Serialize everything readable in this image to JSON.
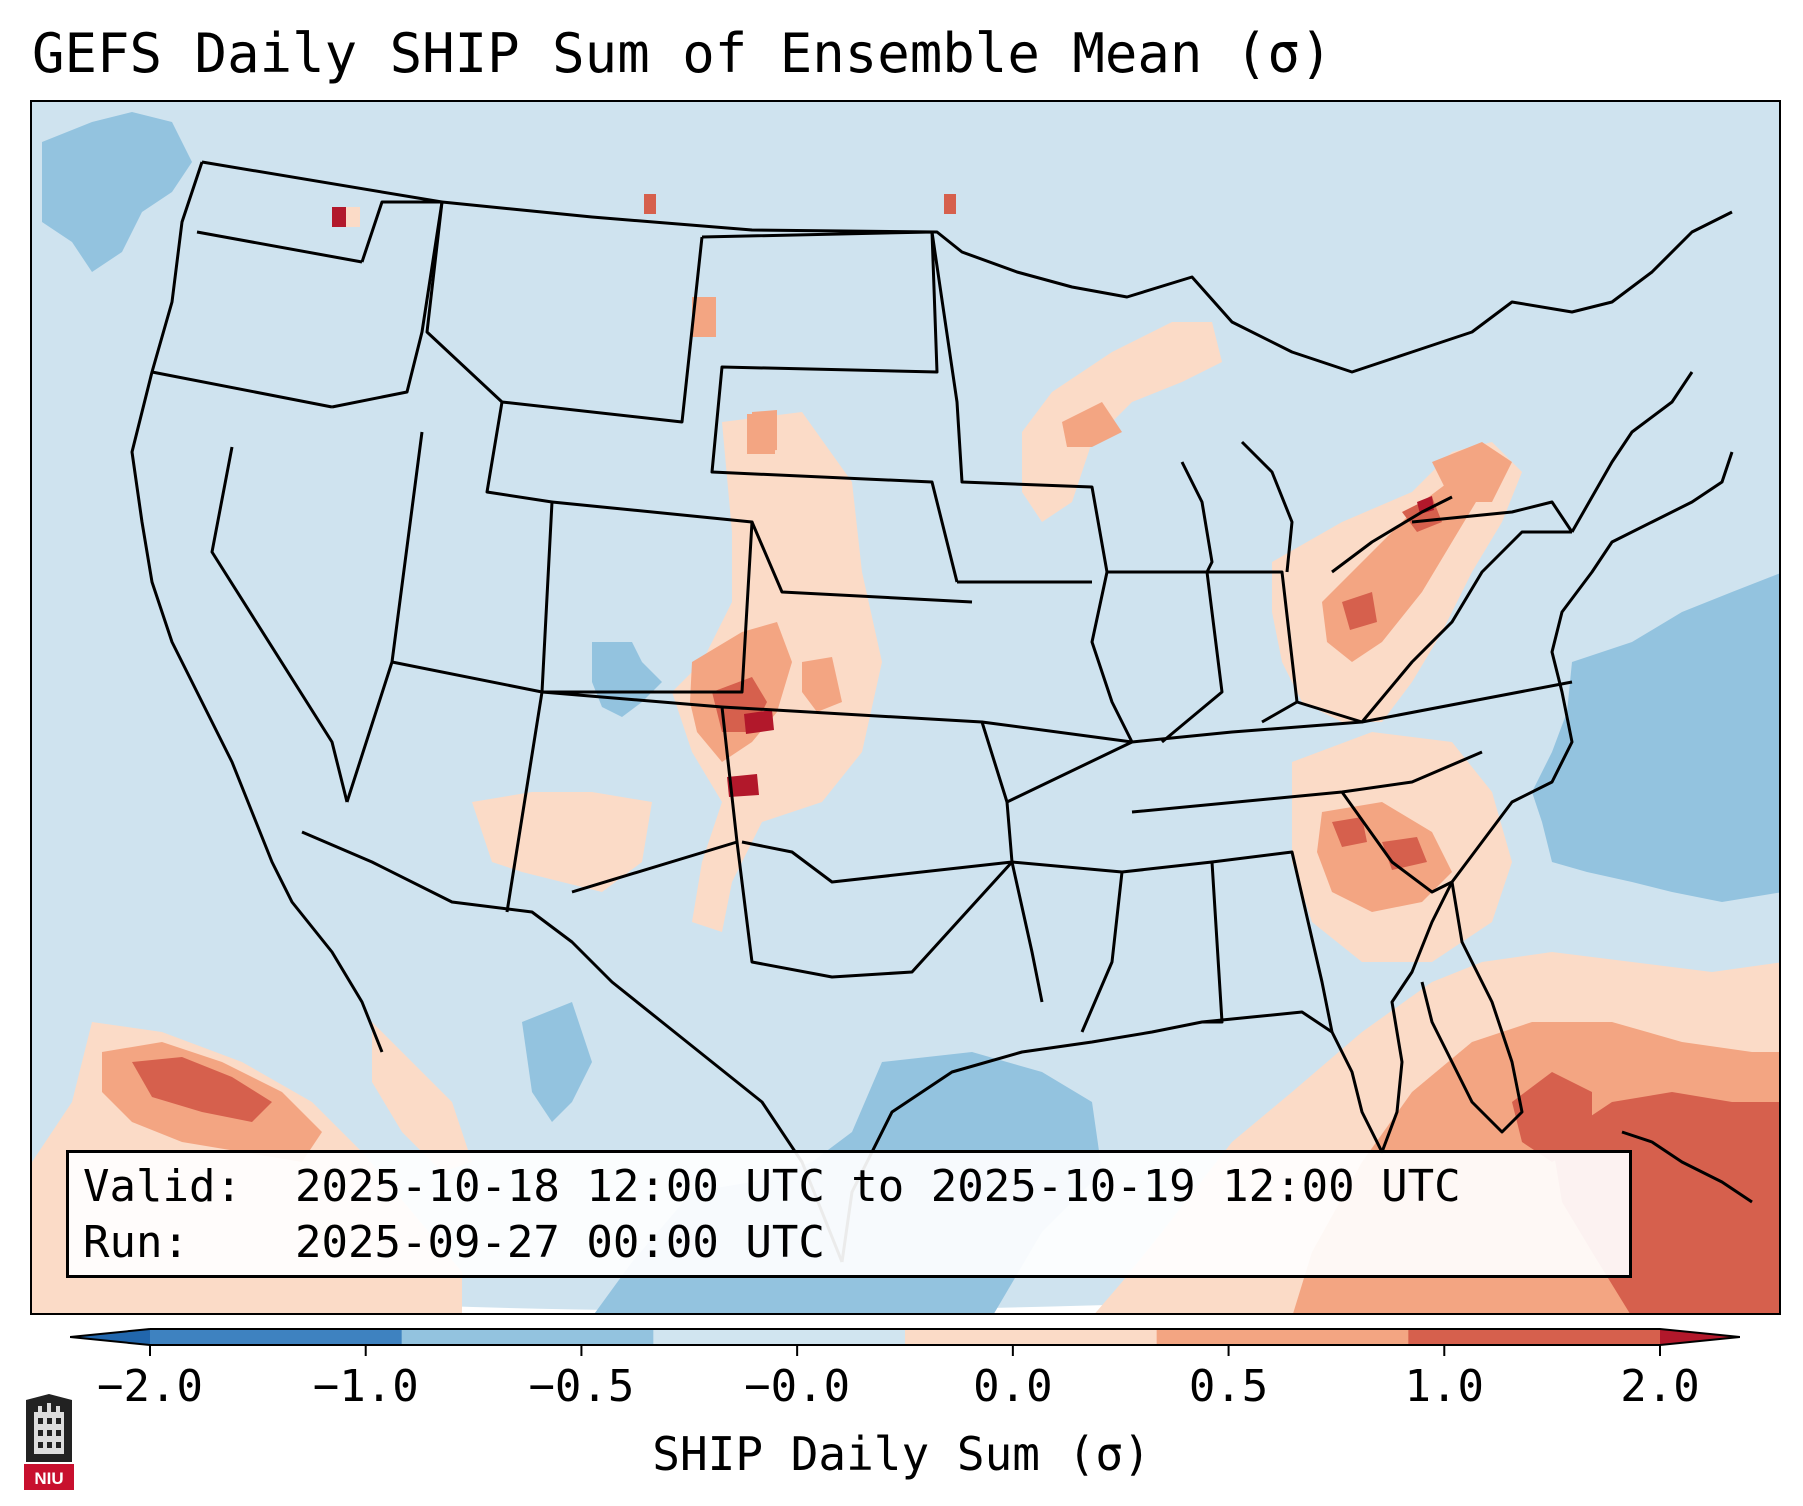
{
  "title": "GEFS Daily SHIP Sum of Ensemble Mean (σ)",
  "info": {
    "valid_label": "Valid:",
    "valid_value": "2025-10-18 12:00 UTC to 2025-10-19 12:00 UTC",
    "run_label": "Run:",
    "run_value": "2025-09-27 00:00 UTC"
  },
  "colorbar": {
    "label": "SHIP Daily Sum (σ)",
    "ticks": [
      "−2.0",
      "−1.0",
      "−0.5",
      "−0.0",
      "0.0",
      "0.5",
      "1.0",
      "2.0"
    ],
    "colors": [
      "#3e82c0",
      "#93c3df",
      "#d1e5f0",
      "#fbdbc7",
      "#f3a582",
      "#d6604d"
    ],
    "extend_low_color": "#2166ac",
    "extend_high_color": "#b2182b"
  },
  "logo": {
    "text": "NIU"
  }
}
